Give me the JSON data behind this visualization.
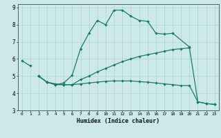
{
  "xlabel": "Humidex (Indice chaleur)",
  "bg_color": "#cce8e8",
  "grid_color": "#aad4d4",
  "line_color": "#1a7a6e",
  "xlim": [
    -0.5,
    23.5
  ],
  "ylim": [
    3,
    9.2
  ],
  "xticks": [
    0,
    1,
    2,
    3,
    4,
    5,
    6,
    7,
    8,
    9,
    10,
    11,
    12,
    13,
    14,
    15,
    16,
    17,
    18,
    19,
    20,
    21,
    22,
    23
  ],
  "yticks": [
    3,
    4,
    5,
    6,
    7,
    8,
    9
  ],
  "line1_x": [
    0,
    1
  ],
  "line1_y": [
    5.9,
    5.6
  ],
  "line2_x": [
    2,
    3,
    4,
    5,
    6,
    7,
    8,
    9,
    10,
    11,
    12,
    13,
    14,
    15,
    16,
    17,
    18,
    20
  ],
  "line2_y": [
    5.0,
    4.65,
    4.5,
    4.6,
    5.05,
    6.6,
    7.5,
    8.25,
    8.0,
    8.85,
    8.85,
    8.5,
    8.25,
    8.2,
    7.5,
    7.45,
    7.5,
    6.7
  ],
  "line3_x": [
    2,
    3,
    4,
    5,
    6,
    7,
    8,
    9,
    10,
    11,
    12,
    13,
    14,
    15,
    16,
    17,
    18,
    19,
    20,
    21,
    22,
    23
  ],
  "line3_y": [
    5.0,
    4.65,
    4.5,
    4.5,
    4.5,
    4.8,
    5.0,
    5.25,
    5.45,
    5.65,
    5.85,
    6.0,
    6.15,
    6.25,
    6.35,
    6.45,
    6.55,
    6.6,
    6.65,
    3.5,
    3.4,
    3.35
  ],
  "line4_x": [
    2,
    3,
    4,
    5,
    6,
    7,
    8,
    9,
    10,
    11,
    12,
    13,
    14,
    15,
    16,
    17,
    18,
    19,
    20,
    21,
    22,
    23
  ],
  "line4_y": [
    5.0,
    4.65,
    4.55,
    4.5,
    4.5,
    4.55,
    4.6,
    4.65,
    4.7,
    4.72,
    4.72,
    4.72,
    4.68,
    4.65,
    4.6,
    4.55,
    4.5,
    4.45,
    4.45,
    3.5,
    3.4,
    3.35
  ]
}
